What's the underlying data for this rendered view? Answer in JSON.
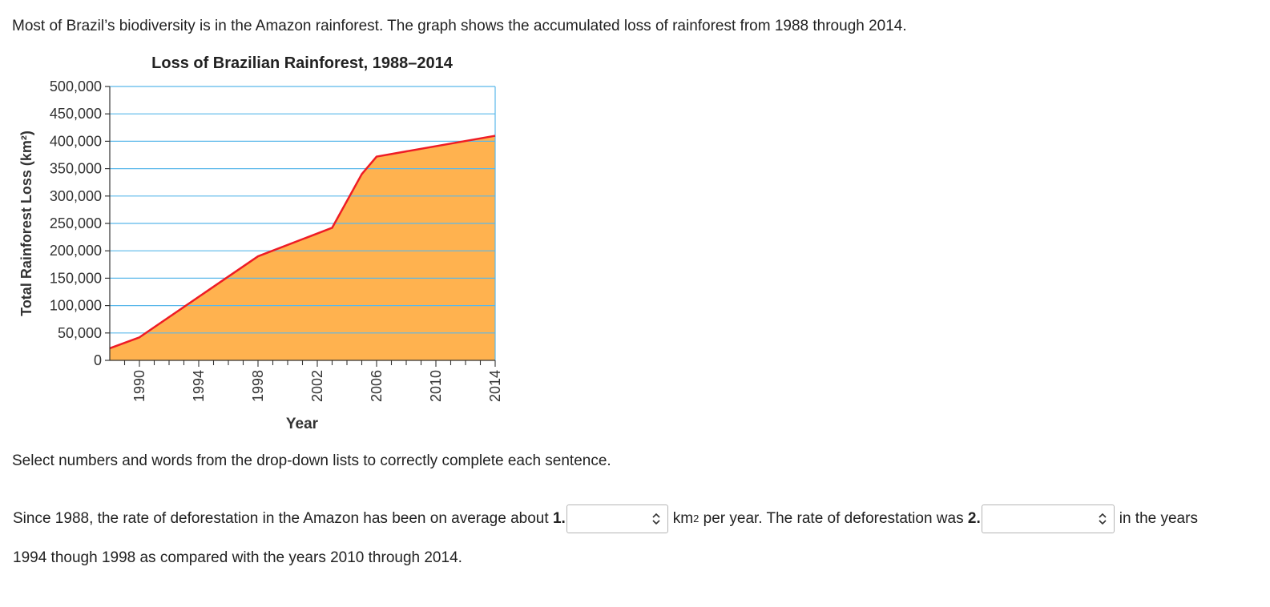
{
  "intro_text": "Most of Brazil’s biodiversity is in the Amazon rainforest. The graph shows the accumulated loss of rainforest from 1988 through 2014.",
  "instruction_text": "Select numbers and words from the drop-down lists to correctly complete each sentence.",
  "question": {
    "part1": "Since 1988, the rate of deforestation in the Amazon has been on average about",
    "blank1_number": "1.",
    "dropdown1_value": "",
    "unit_base": "km",
    "unit_exp": "2",
    "part2": " per year. The rate of deforestation was",
    "blank2_number": "2.",
    "dropdown2_value": "",
    "part3": "in the years",
    "line2": "1994 though 1998 as compared with the years 2010 through 2014."
  },
  "chart_data": {
    "type": "area",
    "title": "Loss of Brazilian Rainforest, 1988–2014",
    "xlabel": "Year",
    "ylabel": "Total Rainforest Loss (km²)",
    "x": [
      1988,
      1990,
      1998,
      2003,
      2005,
      2006,
      2014
    ],
    "y": [
      22000,
      42000,
      190000,
      242000,
      340000,
      372000,
      410000
    ],
    "xlim": [
      1988,
      2014
    ],
    "ylim": [
      0,
      500000
    ],
    "xticks": [
      "1990",
      "1994",
      "1998",
      "2002",
      "2006",
      "2010",
      "2014"
    ],
    "yticks": [
      "0",
      "50,000",
      "100,000",
      "150,000",
      "200,000",
      "250,000",
      "300,000",
      "350,000",
      "400,000",
      "450,000",
      "500,000"
    ],
    "grid": true,
    "colors": {
      "fill": "#ffb24f",
      "line": "#ee1c25",
      "grid": "#5ab8ea"
    }
  }
}
